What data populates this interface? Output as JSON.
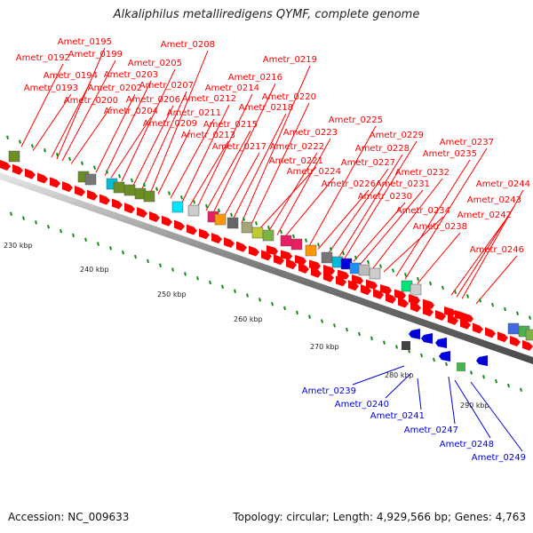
{
  "title": "Alkaliphilus metalliredigens QYMF, complete genome",
  "footer": {
    "accession": "Accession: NC_009633",
    "summary": "Topology: circular; Length: 4,929,566 bp; Genes: 4,763"
  },
  "colors": {
    "forward_gene": "#ff0000",
    "reverse_gene": "#0000dd",
    "backbone": "#888888",
    "tick": "#1a8a1a"
  },
  "scale_labels": [
    "230 kbp",
    "240 kbp",
    "250 kbp",
    "260 kbp",
    "270 kbp",
    "280 kbp",
    "290 kbp"
  ],
  "forward_gene_labels": [
    "Ametr_0192",
    "Ametr_0193",
    "Ametr_0194",
    "Ametr_0195",
    "Ametr_0199",
    "Ametr_0200",
    "Ametr_0202",
    "Ametr_0203",
    "Ametr_0204",
    "Ametr_0205",
    "Ametr_0206",
    "Ametr_0207",
    "Ametr_0208",
    "Ametr_0209",
    "Ametr_0211",
    "Ametr_0212",
    "Ametr_0213",
    "Ametr_0214",
    "Ametr_0215",
    "Ametr_0216",
    "Ametr_0217",
    "Ametr_0218",
    "Ametr_0219",
    "Ametr_0220",
    "Ametr_0221",
    "Ametr_0222",
    "Ametr_0223",
    "Ametr_0224",
    "Ametr_0225",
    "Ametr_0226",
    "Ametr_0227",
    "Ametr_0228",
    "Ametr_0229",
    "Ametr_0230",
    "Ametr_0231",
    "Ametr_0232",
    "Ametr_0234",
    "Ametr_0235",
    "Ametr_0237",
    "Ametr_0238",
    "Ametr_0242",
    "Ametr_0243",
    "Ametr_0244",
    "Ametr_0246"
  ],
  "reverse_gene_labels": [
    "Ametr_0239",
    "Ametr_0240",
    "Ametr_0241",
    "Ametr_0247",
    "Ametr_0248",
    "Ametr_0249"
  ]
}
